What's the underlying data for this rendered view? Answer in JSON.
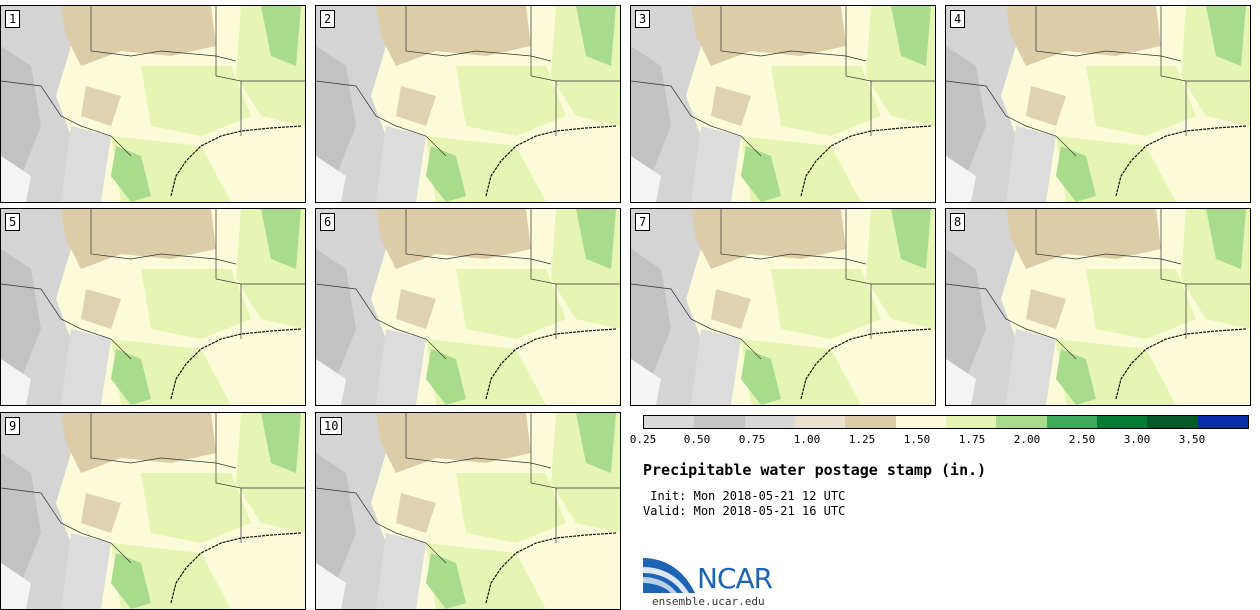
{
  "panels": [
    {
      "number": "1"
    },
    {
      "number": "2"
    },
    {
      "number": "3"
    },
    {
      "number": "4"
    },
    {
      "number": "5"
    },
    {
      "number": "6"
    },
    {
      "number": "7"
    },
    {
      "number": "8"
    },
    {
      "number": "9"
    },
    {
      "number": "10"
    }
  ],
  "colorbar": {
    "colors": [
      "#d9d9d9",
      "#c6c6c6",
      "#d8d8d8",
      "#e8e2cf",
      "#dccca8",
      "#fbfbd9",
      "#e6f5b4",
      "#a8dc8c",
      "#3faa59",
      "#067b36",
      "#065928",
      "#0a2daa"
    ],
    "ticks": [
      "0.25",
      "0.50",
      "0.75",
      "1.00",
      "1.25",
      "1.50",
      "1.75",
      "2.00",
      "2.50",
      "3.00",
      "3.50"
    ]
  },
  "title": "Precipitable water postage stamp (in.)",
  "init_label": " Init:",
  "init_value": "Mon 2018-05-21 12 UTC",
  "valid_label": "Valid:",
  "valid_value": "Mon 2018-05-21 16 UTC",
  "logo": {
    "text": "NCAR",
    "color": "#1e64b4"
  },
  "website": "ensemble.ucar.edu"
}
